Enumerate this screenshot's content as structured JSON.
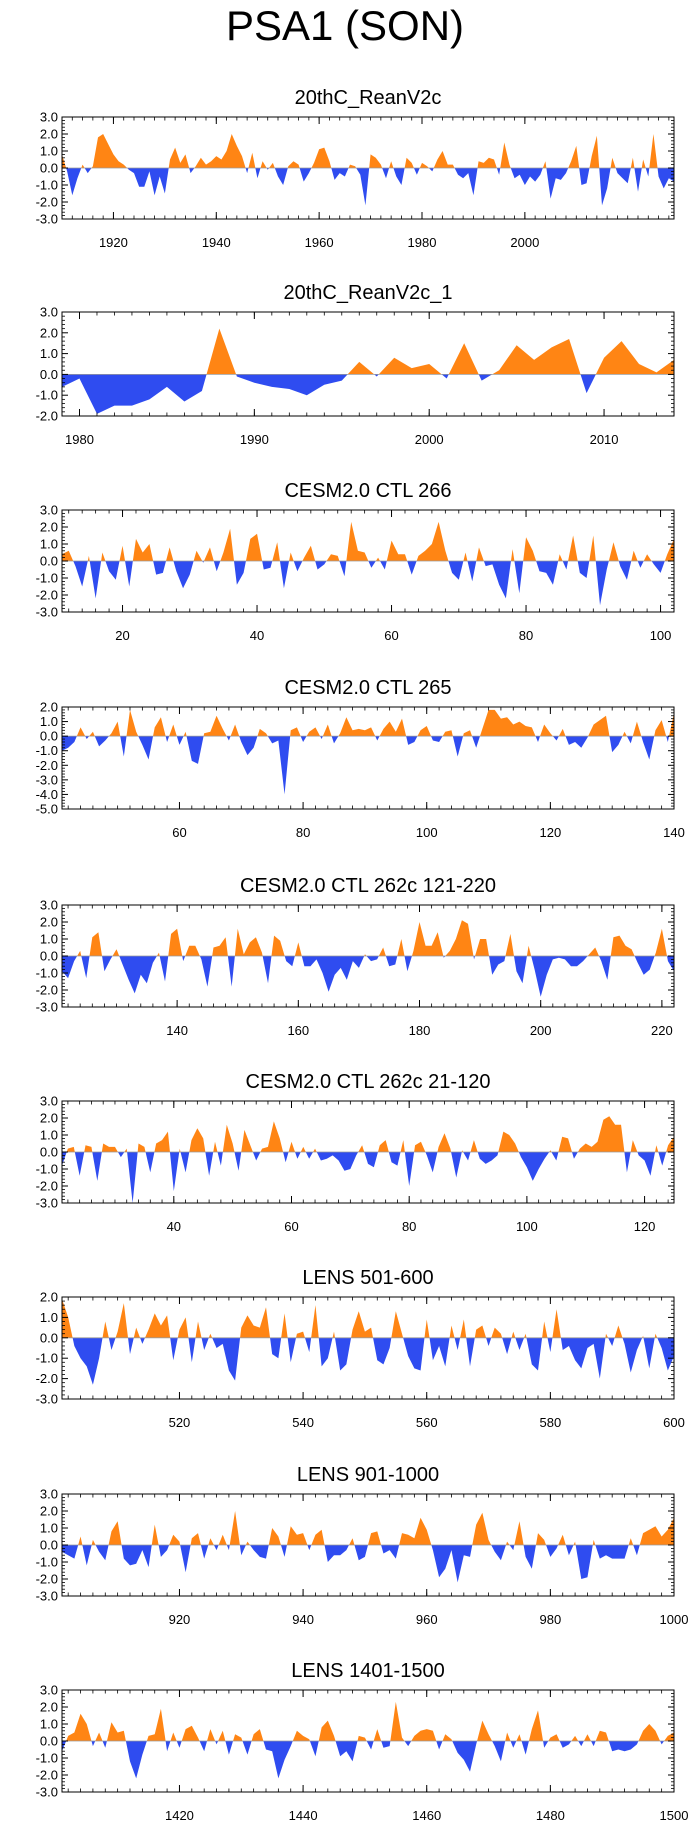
{
  "figure": {
    "title": "PSA1 (SON)"
  },
  "colors": {
    "positive": "#ff8514",
    "negative": "#2f4cf0",
    "axis": "#000000",
    "zero_line": "#9a9a9a"
  },
  "chart_data": [
    {
      "type": "area",
      "title": "20thC_ReanV2c",
      "x_start": 1910,
      "x_end": 2014,
      "ylim": [
        -3,
        3
      ],
      "y_ticks": [
        "3.0",
        "2.0",
        "1.0",
        "0.0",
        "-1.0",
        "-2.0",
        "-3.0"
      ],
      "x_ticks": [
        "1920",
        "1940",
        "1960",
        "1980",
        "2000"
      ],
      "values": [
        0.8,
        -0.2,
        -1.6,
        -0.6,
        0.2,
        -0.3,
        0.1,
        1.8,
        2.0,
        1.4,
        0.8,
        0.4,
        0.2,
        -0.1,
        -0.3,
        -1.1,
        -1.1,
        -0.2,
        -1.6,
        -0.5,
        -1.5,
        0.5,
        1.2,
        0.3,
        0.8,
        -0.3,
        0.1,
        0.6,
        0.2,
        0.4,
        0.7,
        0.5,
        1.0,
        2.0,
        1.3,
        0.7,
        -0.3,
        0.9,
        -0.6,
        0.4,
        -0.1,
        0.3,
        -0.5,
        -1.0,
        0.1,
        0.4,
        0.2,
        -0.8,
        -0.3,
        0.3,
        1.1,
        1.2,
        0.4,
        -0.7,
        -0.3,
        -0.5,
        0.2,
        0.1,
        -0.4,
        -2.2,
        0.8,
        0.6,
        0.2,
        -0.6,
        0.4,
        -0.5,
        -1.0,
        0.6,
        0.3,
        -0.4,
        0.3,
        0.1,
        -0.2,
        0.5,
        1.0,
        0.2,
        0.2,
        -0.4,
        -0.6,
        -0.3,
        -1.6,
        0.4,
        0.3,
        0.6,
        0.5,
        -0.4,
        1.5,
        0.2,
        -0.6,
        -0.4,
        -1.0,
        -0.5,
        -0.8,
        -0.4,
        0.4,
        -1.8,
        -0.6,
        -0.7,
        -0.3,
        0.4,
        1.3,
        -1.0,
        -0.9,
        0.7,
        1.9,
        -2.2,
        -1.2,
        0.6,
        -0.3,
        -0.6,
        -0.9,
        0.6,
        -1.4,
        0.5,
        -0.5,
        2.0,
        -0.5,
        -1.2,
        -0.6,
        -0.8
      ]
    },
    {
      "type": "area",
      "title": "20thC_ReanV2c_1",
      "x_start": 1979,
      "x_end": 2014,
      "ylim": [
        -2,
        3
      ],
      "y_ticks": [
        "3.0",
        "2.0",
        "1.0",
        "0.0",
        "-1.0",
        "-2.0"
      ],
      "x_ticks": [
        "1980",
        "1990",
        "2000",
        "2010"
      ],
      "values": [
        -0.6,
        -0.2,
        -1.9,
        -1.5,
        -1.5,
        -1.2,
        -0.6,
        -1.3,
        -0.8,
        2.2,
        -0.1,
        -0.4,
        -0.6,
        -0.7,
        -1.0,
        -0.5,
        -0.3,
        0.6,
        -0.1,
        0.8,
        0.3,
        0.5,
        -0.2,
        1.5,
        -0.3,
        0.2,
        1.4,
        0.7,
        1.3,
        1.7,
        -0.9,
        0.8,
        1.6,
        0.5,
        0.1,
        0.7
      ]
    },
    {
      "type": "area",
      "title": "CESM2.0 CTL 266",
      "x_start": 11,
      "x_end": 100,
      "ylim": [
        -3,
        3
      ],
      "y_ticks": [
        "3.0",
        "2.0",
        "1.0",
        "0.0",
        "-1.0",
        "-2.0",
        "-3.0"
      ],
      "x_ticks": [
        "20",
        "40",
        "60",
        "80",
        "100"
      ],
      "values": [
        0.4,
        0.6,
        -0.3,
        -1.5,
        0.3,
        -2.2,
        0.5,
        -0.6,
        -1.1,
        0.9,
        -1.5,
        1.3,
        0.5,
        1.0,
        -0.8,
        -0.7,
        0.8,
        -0.6,
        -1.6,
        -0.8,
        0.6,
        -0.1,
        0.8,
        -0.6,
        0.5,
        1.9,
        -1.4,
        -0.7,
        1.3,
        1.6,
        -0.5,
        -0.4,
        1.1,
        -1.6,
        0.5,
        -0.6,
        0.2,
        0.9,
        -0.5,
        -0.2,
        0.4,
        0.3,
        -0.9,
        2.3,
        0.6,
        0.5,
        -0.4,
        0.2,
        -0.5,
        1.2,
        0.4,
        0.4,
        -0.8,
        0.3,
        0.6,
        1.0,
        2.3,
        0.6,
        -0.7,
        -1.1,
        0.5,
        -1.2,
        0.8,
        -0.3,
        -0.2,
        -1.4,
        -2.2,
        0.7,
        -1.9,
        1.4,
        0.6,
        -0.6,
        -0.7,
        -1.4,
        0.4,
        -0.5,
        1.5,
        -0.7,
        -1.0,
        1.5,
        -2.6,
        -0.5,
        1.1,
        -0.3,
        -1.1,
        0.6,
        -0.4,
        0.4,
        -0.2,
        -0.7,
        0.4,
        1.3
      ]
    },
    {
      "type": "area",
      "title": "CESM2.0 CTL 265",
      "x_start": 41,
      "x_end": 140,
      "ylim": [
        -5,
        2
      ],
      "y_ticks": [
        "2.0",
        "1.0",
        "0.0",
        "-1.0",
        "-2.0",
        "-3.0",
        "-4.0",
        "-5.0"
      ],
      "x_ticks": [
        "60",
        "80",
        "100",
        "120",
        "140"
      ],
      "values": [
        -1.0,
        -0.8,
        -0.4,
        0.6,
        -0.2,
        0.3,
        -0.7,
        -0.3,
        0.2,
        1.0,
        -1.4,
        1.8,
        0.3,
        -0.6,
        -1.6,
        0.6,
        1.3,
        -0.4,
        0.8,
        -0.6,
        0.3,
        -1.7,
        -1.9,
        0.2,
        0.3,
        1.4,
        0.5,
        -0.3,
        0.8,
        -0.4,
        -1.3,
        -0.8,
        0.5,
        0.2,
        -0.5,
        -0.3,
        -4.0,
        0.4,
        0.6,
        -0.4,
        0.3,
        0.6,
        -0.2,
        0.8,
        -0.5,
        0.2,
        1.3,
        0.4,
        0.5,
        0.4,
        0.6,
        -0.3,
        0.5,
        1.0,
        0.3,
        1.2,
        -0.6,
        -0.4,
        0.4,
        0.7,
        -0.3,
        -0.4,
        0.3,
        0.4,
        -1.4,
        0.2,
        0.4,
        -0.8,
        0.5,
        1.8,
        1.8,
        1.2,
        1.3,
        0.8,
        1.0,
        0.7,
        0.6,
        -0.4,
        0.8,
        0.2,
        -0.3,
        0.5,
        -0.6,
        -0.4,
        -0.8,
        -0.1,
        0.8,
        1.1,
        1.4,
        -1.1,
        -0.6,
        0.3,
        -0.5,
        1.0,
        -0.4,
        -1.6,
        0.4,
        1.1,
        -0.4,
        1.6
      ]
    },
    {
      "type": "area",
      "title": "CESM2.0 CTL 262c 121-220",
      "x_start": 121,
      "x_end": 220,
      "ylim": [
        -3,
        3
      ],
      "y_ticks": [
        "3.0",
        "2.0",
        "1.0",
        "0.0",
        "-1.0",
        "-2.0",
        "-3.0"
      ],
      "x_ticks": [
        "140",
        "160",
        "180",
        "200",
        "220"
      ],
      "values": [
        -0.9,
        -1.3,
        -0.3,
        0.3,
        -1.3,
        1.1,
        1.4,
        -0.9,
        -0.2,
        0.4,
        -0.5,
        -1.4,
        -2.2,
        -1.1,
        -1.6,
        -0.4,
        0.2,
        -1.5,
        1.3,
        1.6,
        -0.3,
        0.6,
        0.6,
        -0.2,
        -1.8,
        0.5,
        0.6,
        1.1,
        -1.8,
        1.6,
        0.1,
        0.8,
        1.1,
        0.2,
        -1.6,
        1.2,
        0.9,
        -0.3,
        -0.6,
        0.8,
        -0.6,
        -0.6,
        -0.2,
        -1.0,
        -2.1,
        -1.1,
        -0.7,
        -1.4,
        -0.3,
        -0.7,
        0.1,
        -0.3,
        -0.2,
        0.5,
        -0.6,
        -0.5,
        1.0,
        -0.9,
        0.3,
        2.0,
        0.6,
        0.6,
        1.4,
        -0.1,
        0.3,
        1.0,
        2.1,
        1.9,
        -0.2,
        1.0,
        1.0,
        -1.1,
        -0.5,
        -0.3,
        1.3,
        -0.9,
        -1.6,
        0.6,
        -0.8,
        -2.4,
        -1.1,
        -0.2,
        -0.1,
        -0.2,
        -0.6,
        -0.6,
        -0.3,
        0.1,
        0.5,
        -0.3,
        -1.4,
        1.1,
        1.2,
        0.6,
        0.4,
        -0.4,
        -1.1,
        -0.8,
        0.2,
        1.6,
        -0.3,
        -0.9
      ]
    },
    {
      "type": "area",
      "title": "CESM2.0 CTL 262c 21-120",
      "x_start": 21,
      "x_end": 120,
      "ylim": [
        -3,
        3
      ],
      "y_ticks": [
        "3.0",
        "2.0",
        "1.0",
        "0.0",
        "-1.0",
        "-2.0",
        "-3.0"
      ],
      "x_ticks": [
        "40",
        "60",
        "80",
        "100",
        "120"
      ],
      "values": [
        -0.8,
        0.2,
        0.3,
        -1.4,
        0.4,
        0.3,
        -1.7,
        0.5,
        0.3,
        0.3,
        -0.3,
        0.2,
        -3.0,
        0.5,
        0.3,
        -1.2,
        0.5,
        0.7,
        1.2,
        -2.3,
        0.2,
        -1.2,
        0.7,
        1.4,
        0.8,
        -1.4,
        0.6,
        -0.8,
        1.6,
        0.5,
        -1.1,
        1.3,
        0.4,
        -0.5,
        0.2,
        0.3,
        1.8,
        0.8,
        -0.6,
        0.6,
        -0.4,
        0.3,
        -0.4,
        0.2,
        -0.5,
        -0.4,
        -0.2,
        -0.5,
        -1.1,
        -1.0,
        -0.2,
        0.4,
        -0.7,
        -0.9,
        0.4,
        0.7,
        -0.6,
        -0.8,
        0.7,
        -2.0,
        0.4,
        0.6,
        -0.2,
        -1.2,
        0.3,
        1.1,
        0.2,
        -1.5,
        0.1,
        -0.5,
        0.7,
        -0.4,
        -0.7,
        -0.5,
        -0.2,
        1.2,
        1.0,
        0.5,
        -0.3,
        -0.9,
        -1.7,
        -1.0,
        -0.4,
        0.1,
        -0.5,
        0.9,
        0.8,
        -0.4,
        0.2,
        0.5,
        0.3,
        0.6,
        1.9,
        2.1,
        1.6,
        1.6,
        -1.2,
        0.7,
        -0.2,
        -0.5,
        -1.4,
        0.4,
        -0.8,
        0.4,
        0.9
      ]
    },
    {
      "type": "area",
      "title": "LENS 501-600",
      "x_start": 501,
      "x_end": 600,
      "ylim": [
        -3,
        2
      ],
      "y_ticks": [
        "2.0",
        "1.0",
        "0.0",
        "-1.0",
        "-2.0",
        "-3.0"
      ],
      "x_ticks": [
        "520",
        "540",
        "560",
        "580",
        "600"
      ],
      "values": [
        1.9,
        1.0,
        -0.4,
        -1.0,
        -1.4,
        -2.3,
        -1.0,
        0.8,
        -0.6,
        0.3,
        1.7,
        -0.8,
        0.5,
        -0.3,
        0.4,
        1.2,
        0.6,
        1.1,
        -1.1,
        0.4,
        1.0,
        -1.2,
        0.8,
        -0.6,
        0.2,
        -0.5,
        -0.3,
        -1.6,
        -2.1,
        0.5,
        1.1,
        0.6,
        0.5,
        1.5,
        -0.8,
        -1.0,
        1.2,
        -1.2,
        0.2,
        0.3,
        -0.7,
        1.6,
        -1.4,
        -1.0,
        0.3,
        -1.6,
        -1.3,
        0.4,
        1.3,
        0.3,
        0.5,
        -1.1,
        -1.3,
        -0.5,
        1.3,
        0.2,
        -0.9,
        -1.5,
        -1.6,
        0.9,
        -1.1,
        -0.4,
        -1.4,
        0.6,
        -0.6,
        0.9,
        -1.4,
        0.4,
        0.6,
        -0.4,
        0.5,
        0.2,
        -0.8,
        0.3,
        -0.6,
        0.2,
        -1.3,
        -1.6,
        0.8,
        -0.7,
        1.4,
        -0.6,
        -0.4,
        -1.1,
        -1.5,
        -0.5,
        -0.3,
        -2.0,
        0.2,
        -0.4,
        0.6,
        -0.3,
        -1.7,
        -0.6,
        0.1,
        -1.5,
        0.2,
        -0.5,
        -1.6,
        -0.9
      ]
    },
    {
      "type": "area",
      "title": "LENS 901-1000",
      "x_start": 901,
      "x_end": 1000,
      "ylim": [
        -3,
        3
      ],
      "y_ticks": [
        "3.0",
        "2.0",
        "1.0",
        "0.0",
        "-1.0",
        "-2.0",
        "-3.0"
      ],
      "x_ticks": [
        "920",
        "940",
        "960",
        "980",
        "1000"
      ],
      "values": [
        -0.4,
        -0.6,
        -0.8,
        0.5,
        -1.2,
        0.3,
        -0.4,
        -0.9,
        0.8,
        1.4,
        -0.8,
        -1.2,
        -1.1,
        -0.3,
        -1.3,
        1.2,
        -0.7,
        -0.3,
        0.6,
        0.2,
        -1.6,
        0.4,
        0.7,
        -0.8,
        0.4,
        -0.3,
        0.6,
        -0.3,
        2.0,
        -0.6,
        0.2,
        -0.3,
        -0.7,
        -0.8,
        1.0,
        0.5,
        -0.7,
        1.1,
        0.6,
        0.7,
        -0.3,
        0.6,
        0.9,
        -1.0,
        -0.6,
        -0.6,
        -0.3,
        0.4,
        -0.9,
        -0.7,
        0.7,
        0.8,
        -0.5,
        -0.3,
        -0.8,
        0.7,
        0.6,
        0.4,
        1.6,
        0.9,
        -0.3,
        -1.9,
        -1.4,
        -0.3,
        -2.2,
        -0.6,
        -0.7,
        1.2,
        1.9,
        0.3,
        -0.4,
        -0.9,
        0.2,
        -0.3,
        1.4,
        -0.7,
        -1.4,
        0.7,
        0.3,
        -0.7,
        -0.2,
        0.6,
        -0.6,
        0.2,
        -2.0,
        -1.9,
        0.3,
        -0.8,
        -0.6,
        -0.8,
        -0.8,
        -0.8,
        0.4,
        -0.6,
        0.7,
        0.9,
        1.1,
        0.5,
        0.9,
        1.6
      ]
    },
    {
      "type": "area",
      "title": "LENS 1401-1500",
      "x_start": 1401,
      "x_end": 1500,
      "ylim": [
        -3,
        3
      ],
      "y_ticks": [
        "3.0",
        "2.0",
        "1.0",
        "0.0",
        "-1.0",
        "-2.0",
        "-3.0"
      ],
      "x_ticks": [
        "1420",
        "1440",
        "1460",
        "1480",
        "1500"
      ],
      "values": [
        -0.6,
        0.3,
        0.5,
        1.6,
        1.0,
        -0.3,
        0.5,
        -0.4,
        1.1,
        0.5,
        0.6,
        -1.2,
        -2.2,
        -0.8,
        0.3,
        0.4,
        1.9,
        -0.6,
        0.5,
        -0.4,
        0.7,
        0.9,
        0.2,
        -0.6,
        0.7,
        -0.2,
        0.6,
        -0.8,
        0.4,
        0.2,
        -0.8,
        0.4,
        0.7,
        -0.5,
        -0.6,
        -2.2,
        -1.1,
        -0.3,
        0.6,
        0.3,
        0.1,
        -0.9,
        0.8,
        1.2,
        0.3,
        -0.9,
        -0.6,
        -1.2,
        0.3,
        0.2,
        -0.5,
        0.7,
        -0.4,
        -0.3,
        2.3,
        0.2,
        -0.3,
        0.3,
        0.6,
        0.7,
        0.6,
        -0.5,
        0.4,
        0.1,
        -0.7,
        -1.1,
        -1.8,
        -0.2,
        1.2,
        0.4,
        -0.3,
        -1.2,
        0.5,
        -0.4,
        0.4,
        -0.8,
        0.7,
        1.8,
        -0.4,
        0.2,
        0.4,
        -0.4,
        -0.2,
        0.3,
        -0.3,
        0.4,
        -0.3,
        0.6,
        0.5,
        -0.6,
        -0.5,
        -0.6,
        -0.5,
        -0.2,
        0.6,
        1.0,
        0.6,
        -0.2,
        0.3,
        0.5
      ]
    }
  ]
}
